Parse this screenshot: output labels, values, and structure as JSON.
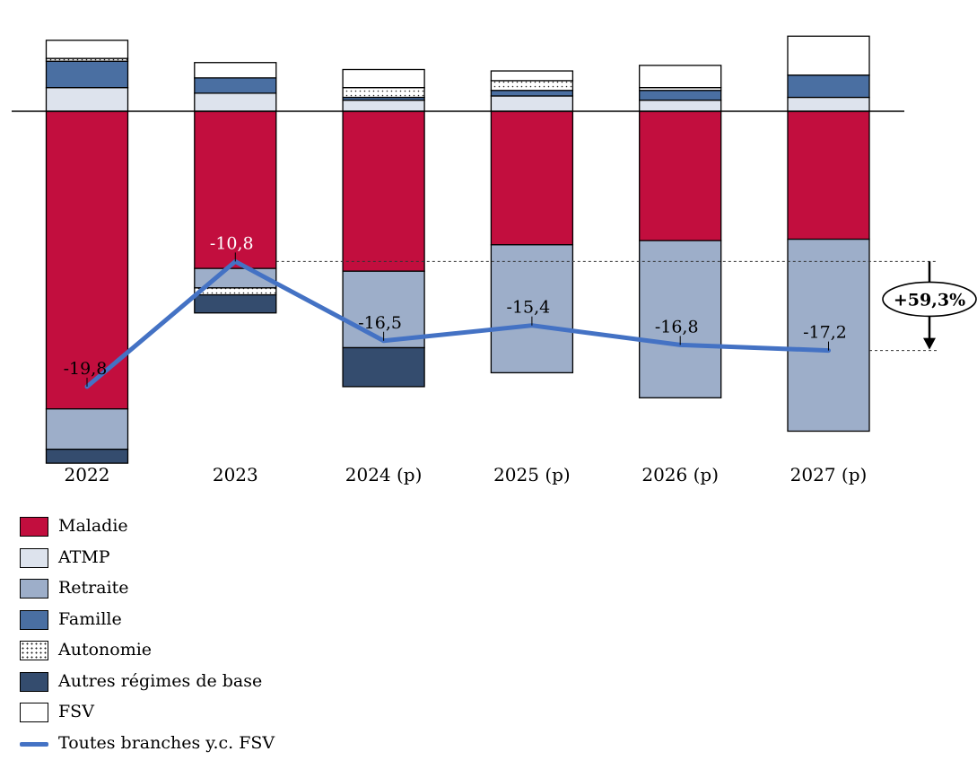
{
  "chart_data": {
    "type": "bar",
    "stacked": true,
    "categories": [
      "2022",
      "2023",
      "2024 (p)",
      "2025 (p)",
      "2026 (p)",
      "2027 (p)"
    ],
    "series": [
      {
        "name": "Maladie",
        "color": "#c20e3e",
        "pattern": "solid",
        "values": [
          -21.4,
          -11.3,
          -11.5,
          -9.6,
          -9.3,
          -9.2
        ]
      },
      {
        "name": "ATMP",
        "color": "#dde3ed",
        "pattern": "solid",
        "values": [
          1.7,
          1.3,
          0.8,
          1.1,
          0.8,
          1.0
        ]
      },
      {
        "name": "Retraite",
        "color": "#9daec9",
        "pattern": "solid",
        "values": [
          -2.9,
          -1.4,
          -5.5,
          -9.2,
          -11.3,
          -13.8
        ]
      },
      {
        "name": "Famille",
        "color": "#4a6fa2",
        "pattern": "solid",
        "values": [
          1.9,
          1.1,
          0.2,
          0.4,
          0.7,
          1.6
        ]
      },
      {
        "name": "Autonomie",
        "color": "#ffffff",
        "pattern": "dots",
        "values": [
          0.2,
          -0.5,
          0.7,
          0.7,
          0.2,
          0.0
        ]
      },
      {
        "name": "Autres régimes de base",
        "color": "#344c6e",
        "pattern": "solid",
        "values": [
          -1.0,
          -1.3,
          -2.8,
          0.0,
          0.0,
          0.0
        ]
      },
      {
        "name": "FSV",
        "color": "#ffffff",
        "pattern": "solid",
        "values": [
          1.3,
          1.1,
          1.3,
          0.7,
          1.6,
          2.8
        ]
      }
    ],
    "line": {
      "name": "Toutes branches y.c. FSV",
      "color": "#4472c4",
      "values": [
        -19.8,
        -10.8,
        -16.5,
        -15.4,
        -16.8,
        -17.2
      ]
    },
    "line_labels": [
      "-19,8",
      "-10,8",
      "-16,5",
      "-15,4",
      "-16,8",
      "-17,2"
    ],
    "annotation": "+59,3%",
    "ylim": [
      -25.6,
      5.5
    ],
    "xlabel": "",
    "ylabel": "",
    "grid": false,
    "legend_position": "bottom-left"
  }
}
